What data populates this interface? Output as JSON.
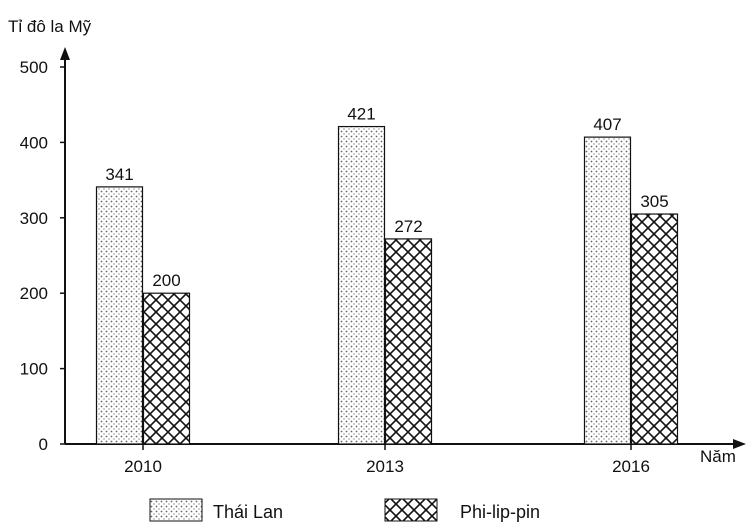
{
  "chart_data": {
    "type": "bar",
    "ylabel": "Tỉ đô la Mỹ",
    "xlabel": "Năm",
    "categories": [
      "2010",
      "2013",
      "2016"
    ],
    "ylim": [
      0,
      500
    ],
    "yticks": [
      0,
      100,
      200,
      300,
      400,
      500
    ],
    "grid": false,
    "legend_position": "bottom",
    "series": [
      {
        "name": "Thái Lan",
        "values": [
          341,
          421,
          407
        ],
        "pattern": "dotted"
      },
      {
        "name": "Phi-lip-pin",
        "values": [
          200,
          272,
          305
        ],
        "pattern": "crosshatch"
      }
    ]
  }
}
